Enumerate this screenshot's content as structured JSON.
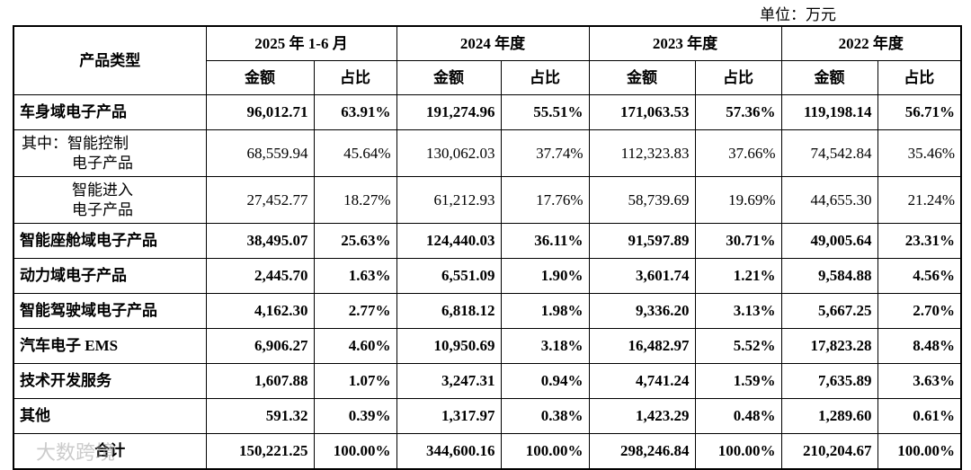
{
  "unit": "单位：万元",
  "watermark": "大数跨境",
  "table": {
    "header": {
      "first": "产品类型",
      "periods": [
        {
          "name": "2025 年 1-6 月",
          "cols": [
            "金额",
            "占比"
          ]
        },
        {
          "name": "2024 年度",
          "cols": [
            "金额",
            "占比"
          ]
        },
        {
          "name": "2023 年度",
          "cols": [
            "金额",
            "占比"
          ]
        },
        {
          "name": "2022 年度",
          "cols": [
            "金额",
            "占比"
          ]
        }
      ]
    },
    "rows": [
      {
        "lines": [
          "车身域电子产品"
        ],
        "bold": true,
        "cells": [
          "96,012.71",
          "63.91%",
          "191,274.96",
          "55.51%",
          "171,063.53",
          "57.36%",
          "119,198.14",
          "56.71%"
        ]
      },
      {
        "lines": [
          "其中：智能控制",
          "电子产品"
        ],
        "bold": false,
        "cells": [
          "68,559.94",
          "45.64%",
          "130,062.03",
          "37.74%",
          "112,323.83",
          "37.66%",
          "74,542.84",
          "35.46%"
        ]
      },
      {
        "lines": [
          "智能进入",
          "电子产品"
        ],
        "bold": false,
        "cells": [
          "27,452.77",
          "18.27%",
          "61,212.93",
          "17.76%",
          "58,739.69",
          "19.69%",
          "44,655.30",
          "21.24%"
        ]
      },
      {
        "lines": [
          "智能座舱域电子产品"
        ],
        "bold": true,
        "cells": [
          "38,495.07",
          "25.63%",
          "124,440.03",
          "36.11%",
          "91,597.89",
          "30.71%",
          "49,005.64",
          "23.31%"
        ]
      },
      {
        "lines": [
          "动力域电子产品"
        ],
        "bold": true,
        "cells": [
          "2,445.70",
          "1.63%",
          "6,551.09",
          "1.90%",
          "3,601.74",
          "1.21%",
          "9,584.88",
          "4.56%"
        ]
      },
      {
        "lines": [
          "智能驾驶域电子产品"
        ],
        "bold": true,
        "cells": [
          "4,162.30",
          "2.77%",
          "6,818.12",
          "1.98%",
          "9,336.20",
          "3.13%",
          "5,667.25",
          "2.70%"
        ]
      },
      {
        "lines": [
          "汽车电子 EMS"
        ],
        "bold": true,
        "cells": [
          "6,906.27",
          "4.60%",
          "10,950.69",
          "3.18%",
          "16,482.97",
          "5.52%",
          "17,823.28",
          "8.48%"
        ]
      },
      {
        "lines": [
          "技术开发服务"
        ],
        "bold": true,
        "cells": [
          "1,607.88",
          "1.07%",
          "3,247.31",
          "0.94%",
          "4,741.24",
          "1.59%",
          "7,635.89",
          "3.63%"
        ]
      },
      {
        "lines": [
          "其他"
        ],
        "bold": true,
        "cells": [
          "591.32",
          "0.39%",
          "1,317.97",
          "0.38%",
          "1,423.29",
          "0.48%",
          "1,289.60",
          "0.61%"
        ]
      },
      {
        "lines": [
          "合计"
        ],
        "bold": true,
        "total": true,
        "cells": [
          "150,221.25",
          "100.00%",
          "344,600.16",
          "100.00%",
          "298,246.84",
          "100.00%",
          "210,204.67",
          "100.00%"
        ]
      }
    ]
  }
}
